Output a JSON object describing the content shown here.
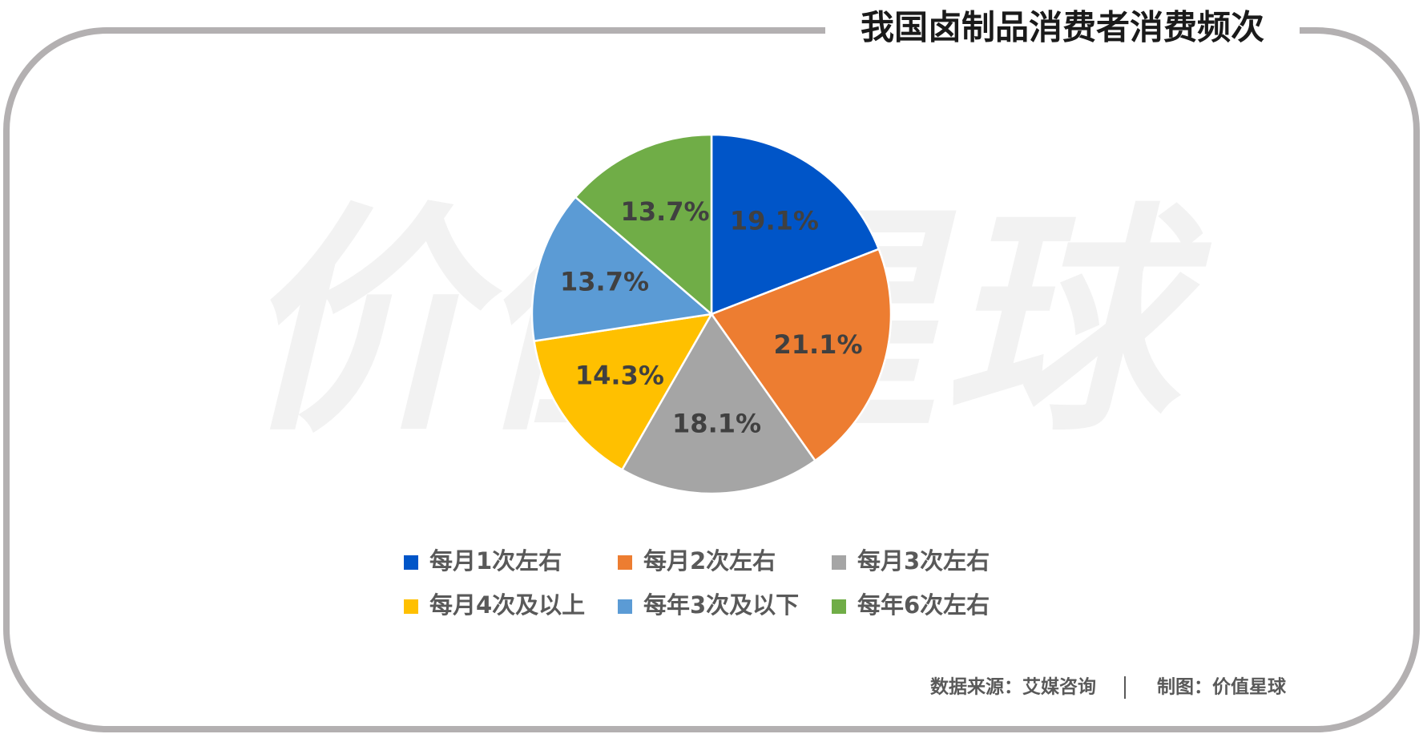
{
  "chart_data": {
    "type": "pie",
    "title": "我国卤制品消费者消费频次",
    "categories": [
      "每月1次左右",
      "每月2次左右",
      "每月3次左右",
      "每月4次及以上",
      "每年3次及以下",
      "每年6次左右"
    ],
    "values": [
      19.1,
      21.1,
      18.1,
      14.3,
      13.7,
      13.7
    ],
    "value_labels": [
      "19.1%",
      "21.1%",
      "18.1%",
      "14.3%",
      "13.7%",
      "13.7%"
    ],
    "colors": [
      "#0055c8",
      "#ed7d31",
      "#a5a5a5",
      "#ffc000",
      "#5b9bd5",
      "#70ad47"
    ]
  },
  "watermark": "价值星球",
  "source": "数据来源：艾媒咨询",
  "credit": "制图：价值星球"
}
